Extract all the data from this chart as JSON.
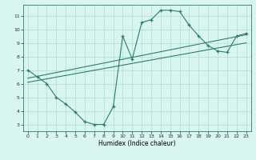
{
  "line1_x": [
    0,
    1,
    2,
    3,
    4,
    5,
    6,
    7,
    8,
    9,
    10,
    11,
    12,
    13,
    14,
    15,
    16,
    17,
    18,
    19,
    20,
    21,
    22,
    23
  ],
  "line1_y": [
    7.0,
    6.5,
    6.0,
    5.0,
    4.5,
    3.9,
    3.2,
    3.0,
    3.0,
    4.3,
    9.5,
    7.8,
    10.5,
    10.7,
    11.4,
    11.4,
    11.3,
    10.3,
    9.5,
    8.8,
    8.4,
    8.3,
    9.5,
    9.7
  ],
  "line2_x": [
    0,
    23
  ],
  "line2_y": [
    6.1,
    9.0
  ],
  "line3_x": [
    0,
    23
  ],
  "line3_y": [
    6.4,
    9.6
  ],
  "line_color": "#2d7d6e",
  "bg_color": "#d8f5f0",
  "grid_color": "#b0ddd5",
  "xlabel": "Humidex (Indice chaleur)",
  "xlim": [
    -0.5,
    23.5
  ],
  "ylim": [
    2.5,
    11.8
  ],
  "yticks": [
    3,
    4,
    5,
    6,
    7,
    8,
    9,
    10,
    11
  ],
  "xticks": [
    0,
    1,
    2,
    3,
    4,
    5,
    6,
    7,
    8,
    9,
    10,
    11,
    12,
    13,
    14,
    15,
    16,
    17,
    18,
    19,
    20,
    21,
    22,
    23
  ]
}
